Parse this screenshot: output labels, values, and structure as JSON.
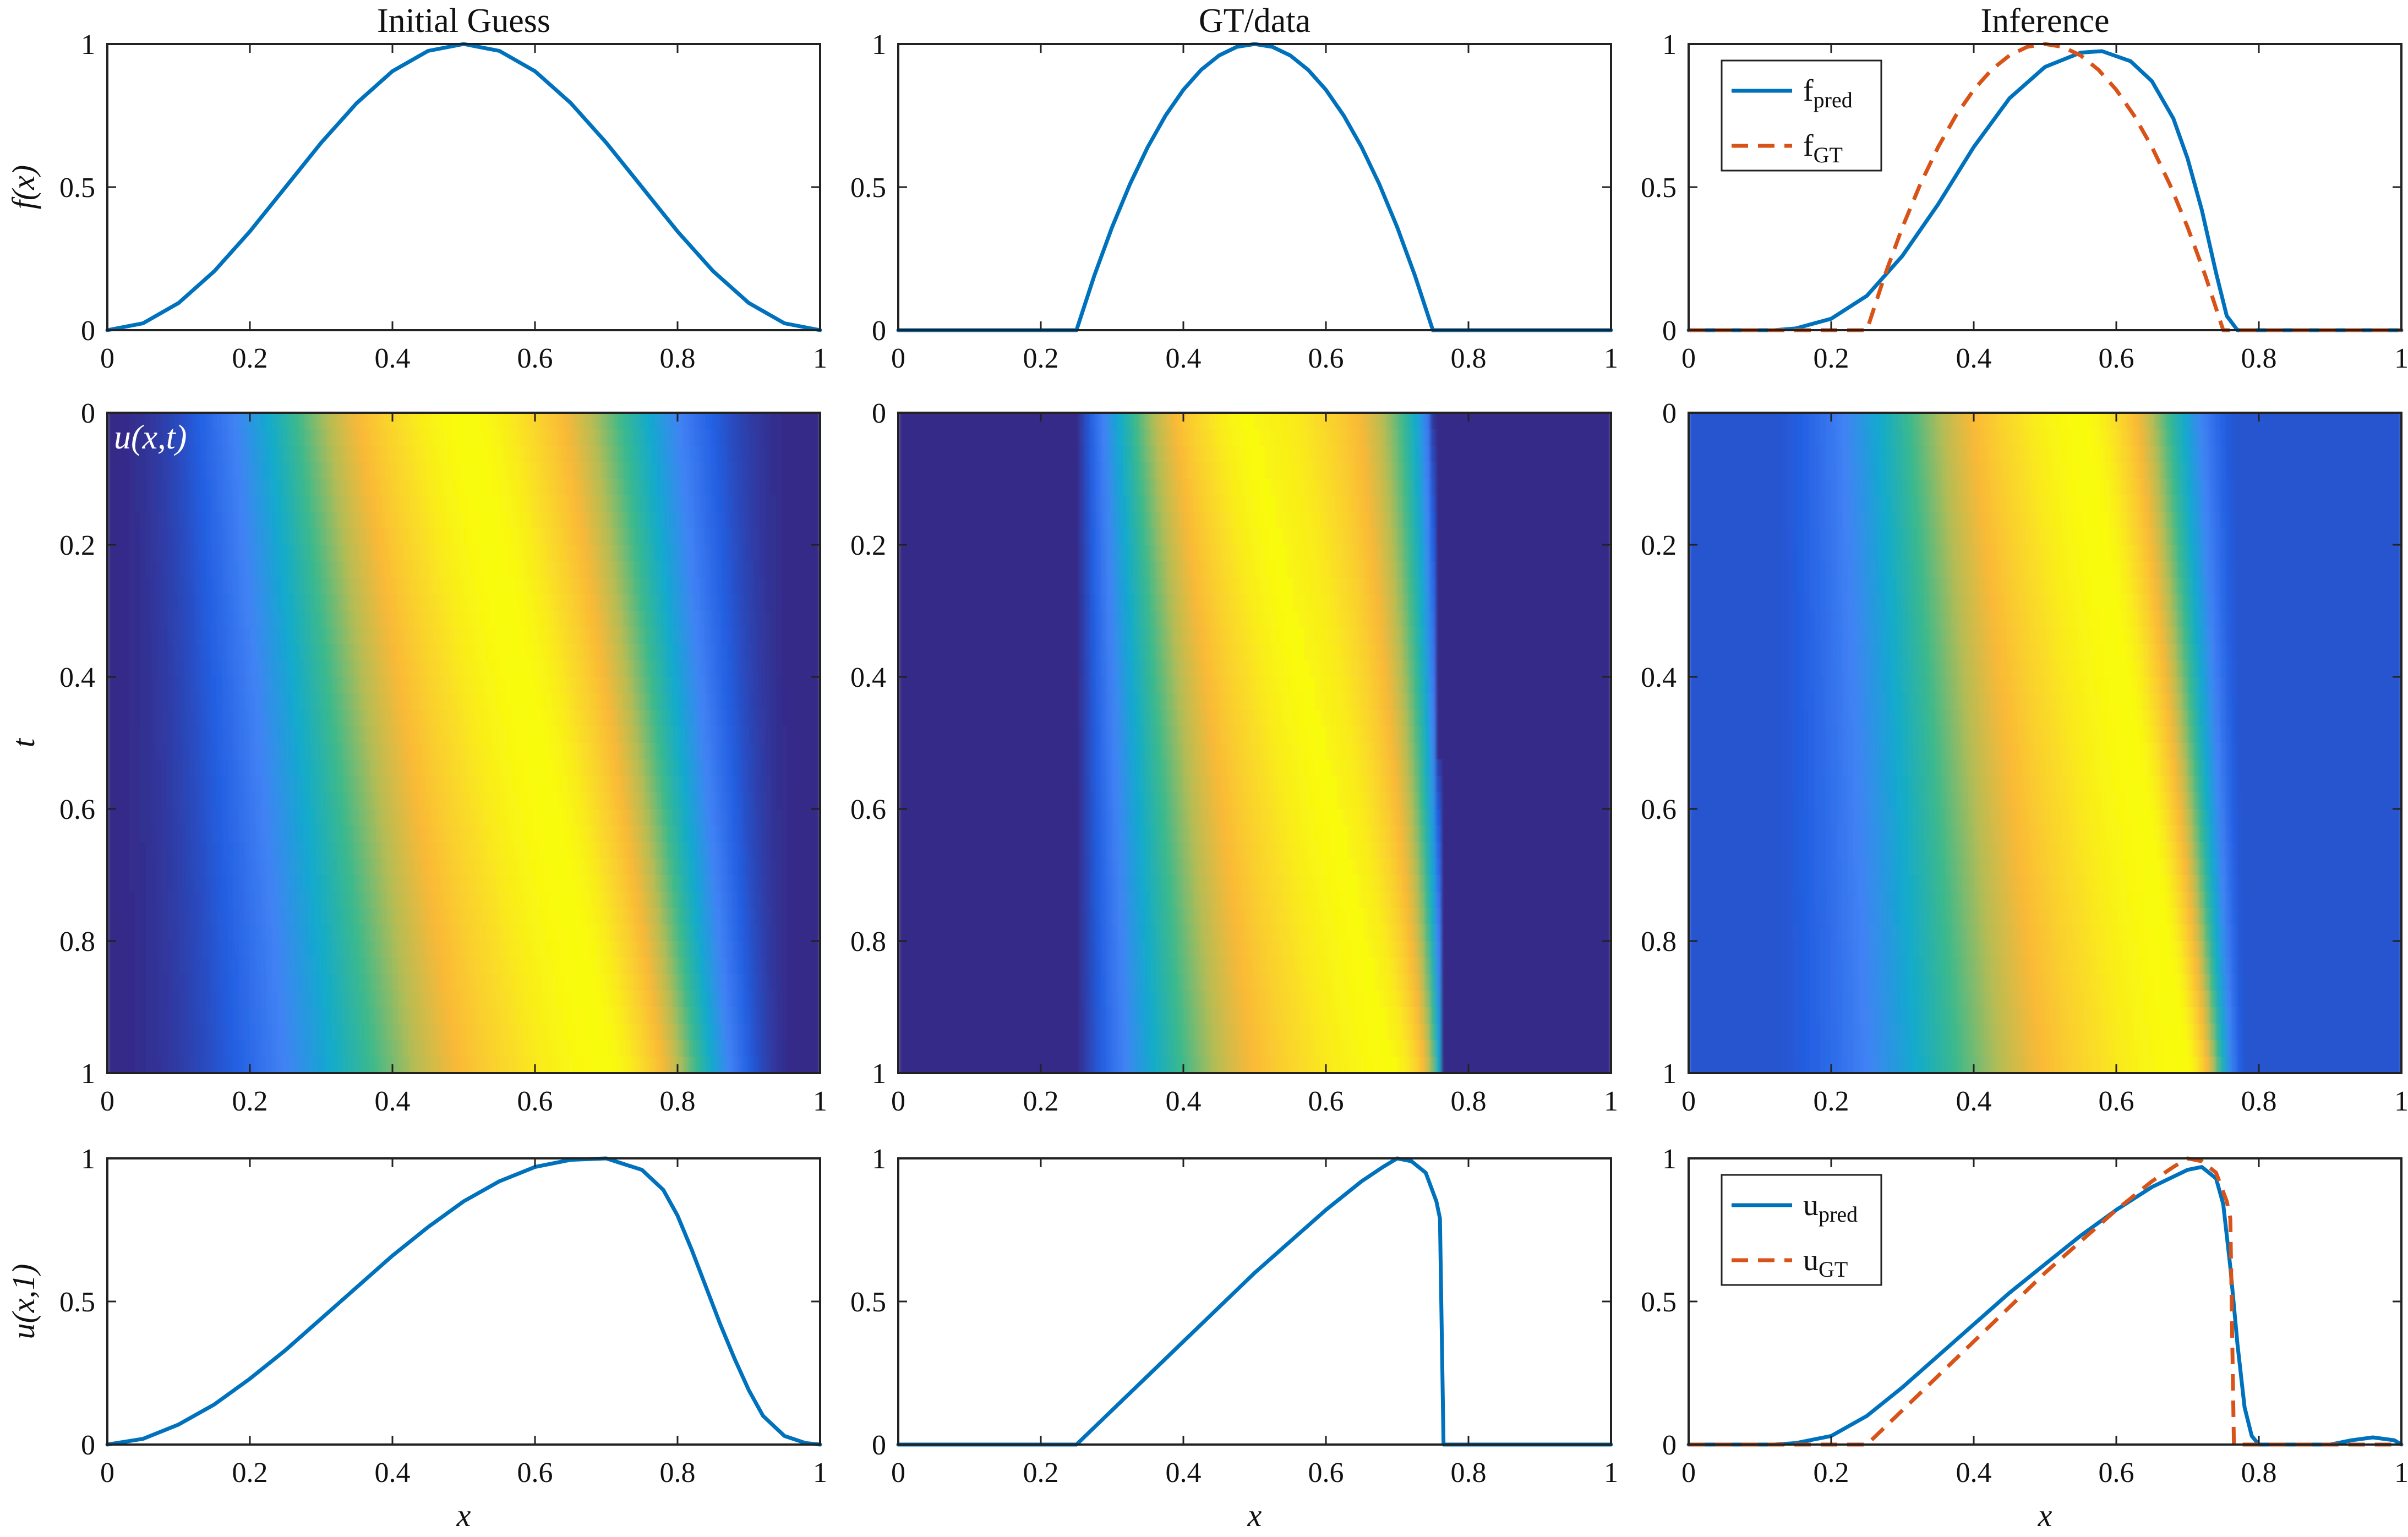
{
  "figure": {
    "column_titles": [
      "Initial Guess",
      "GT/data",
      "Inference"
    ],
    "row_ylabels": [
      "f(x)",
      "t",
      "u(x,1)"
    ],
    "xlabel": "x",
    "heatmap_label": "u(x,t)",
    "colors": {
      "pred": "#0072BD",
      "gt": "#D95319",
      "axis": "#222222"
    }
  },
  "chart_data": [
    {
      "id": "f-initial",
      "type": "line",
      "title": "Initial Guess",
      "xlabel": "",
      "ylabel": "f(x)",
      "xlim": [
        0,
        1
      ],
      "ylim": [
        0,
        1
      ],
      "xticks": [
        "0",
        "0.2",
        "0.4",
        "0.6",
        "0.8",
        "1"
      ],
      "yticks": [
        "0",
        "0.5",
        "1"
      ],
      "series": [
        {
          "name": "",
          "style": "solid",
          "color": "#0072BD",
          "x": [
            0,
            0.05,
            0.1,
            0.15,
            0.2,
            0.25,
            0.3,
            0.35,
            0.4,
            0.45,
            0.5,
            0.55,
            0.6,
            0.65,
            0.7,
            0.75,
            0.8,
            0.85,
            0.9,
            0.95,
            1
          ],
          "y": [
            0,
            0.024,
            0.095,
            0.206,
            0.345,
            0.5,
            0.655,
            0.794,
            0.905,
            0.976,
            1,
            0.976,
            0.905,
            0.794,
            0.655,
            0.5,
            0.345,
            0.206,
            0.095,
            0.024,
            0
          ]
        }
      ]
    },
    {
      "id": "f-gt",
      "type": "line",
      "title": "GT/data",
      "xlabel": "",
      "ylabel": "",
      "xlim": [
        0,
        1
      ],
      "ylim": [
        0,
        1
      ],
      "xticks": [
        "0",
        "0.2",
        "0.4",
        "0.6",
        "0.8",
        "1"
      ],
      "yticks": [
        "0",
        "0.5",
        "1"
      ],
      "series": [
        {
          "name": "",
          "style": "solid",
          "color": "#0072BD",
          "x": [
            0,
            0.25,
            0.275,
            0.3,
            0.325,
            0.35,
            0.375,
            0.4,
            0.425,
            0.45,
            0.475,
            0.5,
            0.525,
            0.55,
            0.575,
            0.6,
            0.625,
            0.65,
            0.675,
            0.7,
            0.725,
            0.75,
            1
          ],
          "y": [
            0,
            0,
            0.19,
            0.36,
            0.51,
            0.64,
            0.75,
            0.84,
            0.91,
            0.96,
            0.99,
            1,
            0.99,
            0.96,
            0.91,
            0.84,
            0.75,
            0.64,
            0.51,
            0.36,
            0.19,
            0,
            0
          ]
        }
      ]
    },
    {
      "id": "f-inference",
      "type": "line",
      "title": "Inference",
      "xlabel": "",
      "ylabel": "",
      "xlim": [
        0,
        1
      ],
      "ylim": [
        0,
        1
      ],
      "xticks": [
        "0",
        "0.2",
        "0.4",
        "0.6",
        "0.8",
        "1"
      ],
      "yticks": [
        "0",
        "0.5",
        "1"
      ],
      "legend": {
        "placement": "top-left",
        "entries": [
          {
            "base": "f",
            "sub": "pred"
          },
          {
            "base": "f",
            "sub": "GT"
          }
        ]
      },
      "series": [
        {
          "name": "f_pred",
          "style": "solid",
          "color": "#0072BD",
          "x": [
            0,
            0.12,
            0.15,
            0.2,
            0.25,
            0.3,
            0.35,
            0.4,
            0.45,
            0.5,
            0.55,
            0.58,
            0.62,
            0.65,
            0.68,
            0.7,
            0.72,
            0.74,
            0.755,
            0.77,
            1
          ],
          "y": [
            0,
            0,
            0.006,
            0.04,
            0.12,
            0.26,
            0.44,
            0.64,
            0.81,
            0.92,
            0.97,
            0.975,
            0.94,
            0.87,
            0.74,
            0.6,
            0.42,
            0.2,
            0.05,
            0,
            0
          ]
        },
        {
          "name": "f_GT",
          "style": "dashed",
          "color": "#D95319",
          "x": [
            0,
            0.25,
            0.275,
            0.3,
            0.325,
            0.35,
            0.375,
            0.4,
            0.425,
            0.45,
            0.475,
            0.5,
            0.525,
            0.55,
            0.575,
            0.6,
            0.625,
            0.65,
            0.675,
            0.7,
            0.725,
            0.75,
            1
          ],
          "y": [
            0,
            0,
            0.19,
            0.36,
            0.51,
            0.64,
            0.75,
            0.84,
            0.91,
            0.96,
            0.99,
            1,
            0.99,
            0.96,
            0.91,
            0.84,
            0.75,
            0.64,
            0.51,
            0.36,
            0.19,
            0,
            0
          ]
        }
      ]
    },
    {
      "id": "u-initial",
      "type": "heatmap",
      "title": "",
      "xlabel": "",
      "ylabel": "t",
      "xlim": [
        0,
        1
      ],
      "ylim": [
        0,
        1
      ],
      "y_reversed": true,
      "xticks": [
        "0",
        "0.2",
        "0.4",
        "0.6",
        "0.8",
        "1"
      ],
      "yticks": [
        "0",
        "0.2",
        "0.4",
        "0.6",
        "0.8",
        "1"
      ],
      "annotation": "u(x,t)",
      "colormap": "parula",
      "profile": {
        "type": "sine_squared",
        "support": [
          0,
          1
        ]
      },
      "right_edge_at_t": [
        [
          0,
          0.97
        ],
        [
          1,
          0.97
        ]
      ],
      "peak_at_t": [
        [
          0,
          0.5
        ],
        [
          1,
          0.7
        ]
      ]
    },
    {
      "id": "u-gt",
      "type": "heatmap",
      "title": "",
      "xlabel": "",
      "ylabel": "",
      "xlim": [
        0,
        1
      ],
      "ylim": [
        0,
        1
      ],
      "y_reversed": true,
      "xticks": [
        "0",
        "0.2",
        "0.4",
        "0.6",
        "0.8",
        "1"
      ],
      "yticks": [
        "0",
        "0.2",
        "0.4",
        "0.6",
        "0.8",
        "1"
      ],
      "colormap": "parula",
      "profile": {
        "type": "parabola",
        "support_left": 0.25
      },
      "right_edge_at_t": [
        [
          0,
          0.75
        ],
        [
          1,
          0.765
        ]
      ],
      "peak_at_t": [
        [
          0,
          0.5
        ],
        [
          1,
          0.7
        ]
      ]
    },
    {
      "id": "u-inference",
      "type": "heatmap",
      "title": "",
      "xlabel": "",
      "ylabel": "",
      "xlim": [
        0,
        1
      ],
      "ylim": [
        0,
        1
      ],
      "y_reversed": true,
      "xticks": [
        "0",
        "0.2",
        "0.4",
        "0.6",
        "0.8",
        "1"
      ],
      "yticks": [
        "0",
        "0.2",
        "0.4",
        "0.6",
        "0.8",
        "1"
      ],
      "colormap": "parula",
      "profile": {
        "type": "smooth",
        "support_left": 0.12,
        "background": 0.12
      },
      "right_edge_at_t": [
        [
          0,
          0.77
        ],
        [
          1,
          0.78
        ]
      ],
      "peak_at_t": [
        [
          0,
          0.55
        ],
        [
          1,
          0.7
        ]
      ]
    },
    {
      "id": "u1-initial",
      "type": "line",
      "title": "",
      "xlabel": "x",
      "ylabel": "u(x,1)",
      "xlim": [
        0,
        1
      ],
      "ylim": [
        0,
        1
      ],
      "xticks": [
        "0",
        "0.2",
        "0.4",
        "0.6",
        "0.8",
        "1"
      ],
      "yticks": [
        "0",
        "0.5",
        "1"
      ],
      "series": [
        {
          "name": "",
          "style": "solid",
          "color": "#0072BD",
          "x": [
            0,
            0.05,
            0.1,
            0.15,
            0.2,
            0.25,
            0.3,
            0.35,
            0.4,
            0.45,
            0.5,
            0.55,
            0.6,
            0.65,
            0.7,
            0.75,
            0.78,
            0.8,
            0.82,
            0.84,
            0.86,
            0.88,
            0.9,
            0.92,
            0.95,
            0.98,
            1
          ],
          "y": [
            0,
            0.02,
            0.07,
            0.14,
            0.23,
            0.33,
            0.44,
            0.55,
            0.66,
            0.76,
            0.85,
            0.92,
            0.97,
            0.995,
            1,
            0.96,
            0.89,
            0.8,
            0.68,
            0.55,
            0.42,
            0.3,
            0.19,
            0.1,
            0.03,
            0.005,
            0
          ]
        }
      ]
    },
    {
      "id": "u1-gt",
      "type": "line",
      "title": "",
      "xlabel": "x",
      "ylabel": "",
      "xlim": [
        0,
        1
      ],
      "ylim": [
        0,
        1
      ],
      "xticks": [
        "0",
        "0.2",
        "0.4",
        "0.6",
        "0.8",
        "1"
      ],
      "yticks": [
        "0",
        "0.5",
        "1"
      ],
      "series": [
        {
          "name": "",
          "style": "solid",
          "color": "#0072BD",
          "x": [
            0,
            0.25,
            0.3,
            0.35,
            0.4,
            0.45,
            0.5,
            0.55,
            0.6,
            0.65,
            0.68,
            0.7,
            0.72,
            0.74,
            0.755,
            0.76,
            0.765,
            0.77,
            1
          ],
          "y": [
            0,
            0,
            0.12,
            0.24,
            0.36,
            0.48,
            0.6,
            0.71,
            0.82,
            0.92,
            0.97,
            1,
            0.99,
            0.95,
            0.85,
            0.79,
            0,
            0,
            0
          ]
        }
      ]
    },
    {
      "id": "u1-inference",
      "type": "line",
      "title": "",
      "xlabel": "x",
      "ylabel": "",
      "xlim": [
        0,
        1
      ],
      "ylim": [
        0,
        1
      ],
      "xticks": [
        "0",
        "0.2",
        "0.4",
        "0.6",
        "0.8",
        "1"
      ],
      "yticks": [
        "0",
        "0.5",
        "1"
      ],
      "legend": {
        "placement": "top-left",
        "entries": [
          {
            "base": "u",
            "sub": "pred"
          },
          {
            "base": "u",
            "sub": "GT"
          }
        ]
      },
      "series": [
        {
          "name": "u_pred",
          "style": "solid",
          "color": "#0072BD",
          "x": [
            0,
            0.12,
            0.15,
            0.2,
            0.25,
            0.3,
            0.35,
            0.4,
            0.45,
            0.5,
            0.55,
            0.6,
            0.65,
            0.7,
            0.72,
            0.74,
            0.75,
            0.76,
            0.77,
            0.78,
            0.79,
            0.8,
            0.9,
            0.93,
            0.96,
            0.99,
            1
          ],
          "y": [
            0,
            0,
            0.005,
            0.03,
            0.1,
            0.2,
            0.31,
            0.42,
            0.53,
            0.63,
            0.73,
            0.82,
            0.9,
            0.96,
            0.97,
            0.93,
            0.84,
            0.62,
            0.35,
            0.13,
            0.03,
            0,
            0,
            0.015,
            0.025,
            0.015,
            0
          ]
        },
        {
          "name": "u_GT",
          "style": "dashed",
          "color": "#D95319",
          "x": [
            0,
            0.25,
            0.3,
            0.35,
            0.4,
            0.45,
            0.5,
            0.55,
            0.6,
            0.65,
            0.68,
            0.7,
            0.72,
            0.74,
            0.755,
            0.76,
            0.765,
            0.77,
            1
          ],
          "y": [
            0,
            0,
            0.12,
            0.24,
            0.36,
            0.48,
            0.6,
            0.71,
            0.82,
            0.92,
            0.97,
            1,
            0.99,
            0.95,
            0.85,
            0.79,
            0,
            0,
            0
          ]
        }
      ]
    }
  ]
}
